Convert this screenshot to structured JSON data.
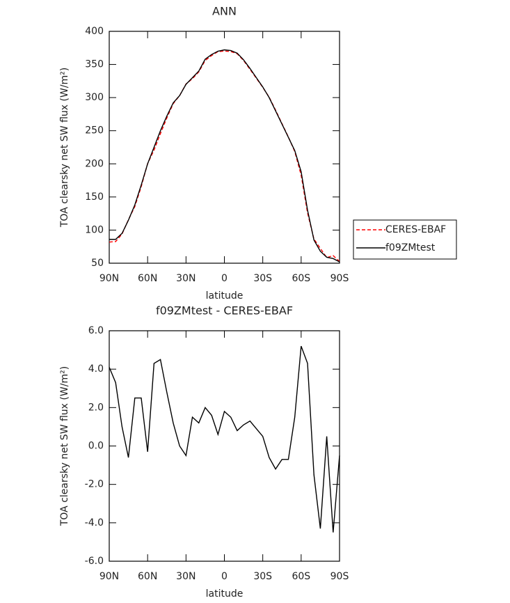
{
  "chart_data": [
    {
      "type": "line",
      "title": "ANN",
      "xlabel": "latitude",
      "ylabel": "TOA clearsky net SW flux (W/m²)",
      "x": [
        90,
        85,
        80,
        75,
        70,
        65,
        60,
        55,
        50,
        45,
        40,
        35,
        30,
        25,
        20,
        15,
        10,
        5,
        0,
        -5,
        -10,
        -15,
        -20,
        -25,
        -30,
        -35,
        -40,
        -45,
        -50,
        -55,
        -60,
        -65,
        -70,
        -75,
        -80,
        -85,
        -90
      ],
      "series": [
        {
          "name": "CERES-EBAF",
          "color": "#ff0000",
          "dashed": true,
          "values": [
            81.9,
            82.7,
            94.0,
            115.6,
            135.5,
            165.5,
            200.3,
            220.7,
            245.5,
            269.2,
            290.8,
            303.0,
            320.5,
            328.5,
            338.8,
            356.0,
            363.4,
            369.4,
            370.2,
            369.5,
            366.2,
            355.9,
            342.7,
            329.1,
            315.5,
            300.6,
            281.2,
            260.7,
            240.7,
            218.5,
            182.8,
            125.7,
            86.5,
            72.3,
            58.5,
            61.5,
            52.5
          ]
        },
        {
          "name": "f09ZMtest",
          "color": "#000000",
          "dashed": false,
          "values": [
            86,
            86,
            95,
            115,
            138,
            168,
            200,
            225,
            250,
            272,
            292,
            303,
            320,
            330,
            340,
            358,
            365,
            370,
            372,
            371,
            367,
            357,
            344,
            330,
            316,
            300,
            280,
            260,
            240,
            220,
            188,
            130,
            85,
            68,
            59,
            57,
            52
          ]
        }
      ],
      "xlim": [
        90,
        -90
      ],
      "xticks": [
        {
          "value": 90,
          "label": "90N"
        },
        {
          "value": 60,
          "label": "60N"
        },
        {
          "value": 30,
          "label": "30N"
        },
        0,
        {
          "value": -30,
          "label": "30S"
        },
        {
          "value": -60,
          "label": "60S"
        },
        {
          "value": -90,
          "label": "90S"
        }
      ],
      "ylim": [
        50,
        400
      ],
      "yticks": [
        50,
        100,
        150,
        200,
        250,
        300,
        350,
        400
      ],
      "legend": "right"
    },
    {
      "type": "line",
      "title": "f09ZMtest - CERES-EBAF",
      "xlabel": "latitude",
      "ylabel": "TOA clearsky net SW flux (W/m²)",
      "x": [
        90,
        85,
        80,
        75,
        70,
        65,
        60,
        55,
        50,
        45,
        40,
        35,
        30,
        25,
        20,
        15,
        10,
        5,
        0,
        -5,
        -10,
        -15,
        -20,
        -25,
        -30,
        -35,
        -40,
        -45,
        -50,
        -55,
        -60,
        -65,
        -70,
        -75,
        -80,
        -85,
        -90
      ],
      "series": [
        {
          "color": "#000000",
          "dashed": false,
          "values": [
            4.1,
            3.3,
            1.0,
            -0.6,
            2.5,
            2.5,
            -0.3,
            4.3,
            4.5,
            2.8,
            1.2,
            0.0,
            -0.5,
            1.5,
            1.2,
            2.0,
            1.6,
            0.6,
            1.8,
            1.5,
            0.8,
            1.1,
            1.3,
            0.9,
            0.5,
            -0.6,
            -1.2,
            -0.7,
            -0.7,
            1.5,
            5.2,
            4.3,
            -1.5,
            -4.3,
            0.5,
            -4.5,
            -0.5
          ]
        }
      ],
      "xlim": [
        90,
        -90
      ],
      "xticks": [
        {
          "value": 90,
          "label": "90N"
        },
        {
          "value": 60,
          "label": "60N"
        },
        {
          "value": 30,
          "label": "30N"
        },
        0,
        {
          "value": -30,
          "label": "30S"
        },
        {
          "value": -60,
          "label": "60S"
        },
        {
          "value": -90,
          "label": "90S"
        }
      ],
      "ylim": [
        -6,
        6
      ],
      "yticks": [
        {
          "value": -6,
          "label": "-6.0"
        },
        {
          "value": -4,
          "label": "-4.0"
        },
        {
          "value": -2,
          "label": "-2.0"
        },
        {
          "value": 0,
          "label": "0.0"
        },
        {
          "value": 2,
          "label": "2.0"
        },
        {
          "value": 4,
          "label": "4.0"
        },
        {
          "value": 6,
          "label": "6.0"
        }
      ]
    }
  ]
}
